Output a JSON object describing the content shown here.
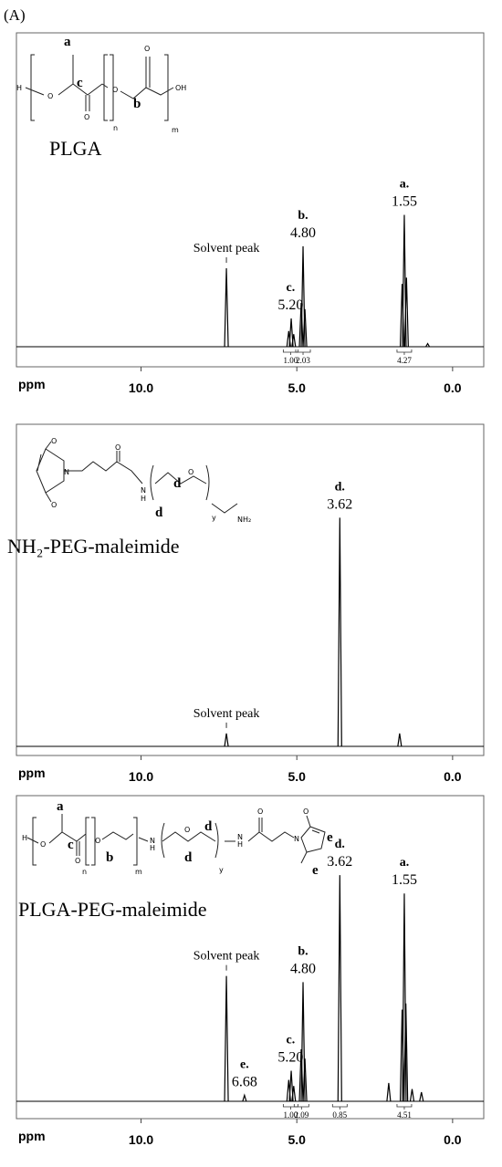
{
  "panel_label": "(A)",
  "chart_data": [
    {
      "type": "spectrum",
      "title": "PLGA",
      "x_label": "ppm",
      "color": "#000000",
      "xlim": [
        14,
        -1
      ],
      "xticks": [
        {
          "value": 10,
          "label": "10.0"
        },
        {
          "value": 5,
          "label": "5.0"
        },
        {
          "value": 0,
          "label": "0.0"
        }
      ],
      "ylim": [
        0,
        100
      ],
      "peaks": {
        "x": [
          7.26,
          5.26,
          5.18,
          5.1,
          4.86,
          4.8,
          4.74,
          1.62,
          1.55,
          1.48,
          0.8
        ],
        "y": [
          25,
          5,
          9,
          4,
          14,
          32,
          12,
          20,
          42,
          22,
          1
        ]
      },
      "annotations": [
        {
          "text": "Solvent peak",
          "x": 7.26
        },
        {
          "letter": "c.",
          "value": 5.2,
          "label": "5.20"
        },
        {
          "letter": "b.",
          "value": 4.8,
          "label": "4.80"
        },
        {
          "letter": "a.",
          "value": 1.55,
          "label": "1.55"
        }
      ],
      "integrals": {
        "x": [
          5.2,
          4.8,
          1.55
        ],
        "values": [
          1,
          2.03,
          4.27
        ],
        "value_labels": [
          "1.00",
          "2.03",
          "4.27"
        ]
      },
      "structure_labels": [
        "H",
        "O",
        "a",
        "c",
        "O",
        "O",
        "b",
        "O",
        "OH",
        "n",
        "m"
      ]
    },
    {
      "type": "spectrum",
      "title": "NH₂-PEG-maleimide",
      "x_label": "ppm",
      "color": "#000000",
      "xlim": [
        14,
        -1
      ],
      "xticks": [
        {
          "value": 10,
          "label": "10.0"
        },
        {
          "value": 5,
          "label": "5.0"
        },
        {
          "value": 0,
          "label": "0.0"
        }
      ],
      "ylim": [
        0,
        100
      ],
      "peaks": {
        "x": [
          7.26,
          3.62,
          1.7
        ],
        "y": [
          4,
          71,
          4
        ]
      },
      "annotations": [
        {
          "text": "Solvent peak",
          "x": 7.26
        },
        {
          "letter": "d.",
          "value": 3.62,
          "label": "3.62"
        }
      ],
      "structure_labels": [
        "O",
        "N",
        "O",
        "O",
        "N",
        "H",
        "d",
        "O",
        "d",
        "y",
        "NH₂"
      ]
    },
    {
      "type": "spectrum",
      "title": "PLGA-PEG-maleimide",
      "x_label": "ppm",
      "color": "#000000",
      "xlim": [
        14,
        -1
      ],
      "xticks": [
        {
          "value": 10,
          "label": "10.0"
        },
        {
          "value": 5,
          "label": "5.0"
        },
        {
          "value": 0,
          "label": "0.0"
        }
      ],
      "ylim": [
        0,
        100
      ],
      "peaks": {
        "x": [
          7.26,
          6.68,
          5.26,
          5.18,
          5.1,
          4.86,
          4.8,
          4.74,
          3.62,
          2.05,
          1.62,
          1.55,
          1.5,
          1.3,
          1.0
        ],
        "y": [
          41,
          2,
          7,
          10,
          5,
          17,
          39,
          14,
          74,
          6,
          30,
          68,
          32,
          4,
          3
        ]
      },
      "annotations": [
        {
          "text": "Solvent peak",
          "x": 7.26
        },
        {
          "letter": "e.",
          "value": 6.68,
          "label": "6.68"
        },
        {
          "letter": "c.",
          "value": 5.2,
          "label": "5.20"
        },
        {
          "letter": "b.",
          "value": 4.8,
          "label": "4.80"
        },
        {
          "letter": "d.",
          "value": 3.62,
          "label": "3.62"
        },
        {
          "letter": "a.",
          "value": 1.55,
          "label": "1.55"
        }
      ],
      "integrals": {
        "x": [
          5.2,
          4.85,
          3.62,
          1.55
        ],
        "values": [
          1,
          2.09,
          0.85,
          4.51
        ],
        "value_labels": [
          "1.00",
          "2.09",
          "0.85",
          "4.51"
        ]
      },
      "structure_labels": [
        "H",
        "O",
        "a",
        "c",
        "O",
        "O",
        "b",
        "n",
        "m",
        "N",
        "H",
        "O",
        "d",
        "d",
        "y",
        "N",
        "H",
        "O",
        "N",
        "O",
        "e",
        "e"
      ]
    }
  ]
}
